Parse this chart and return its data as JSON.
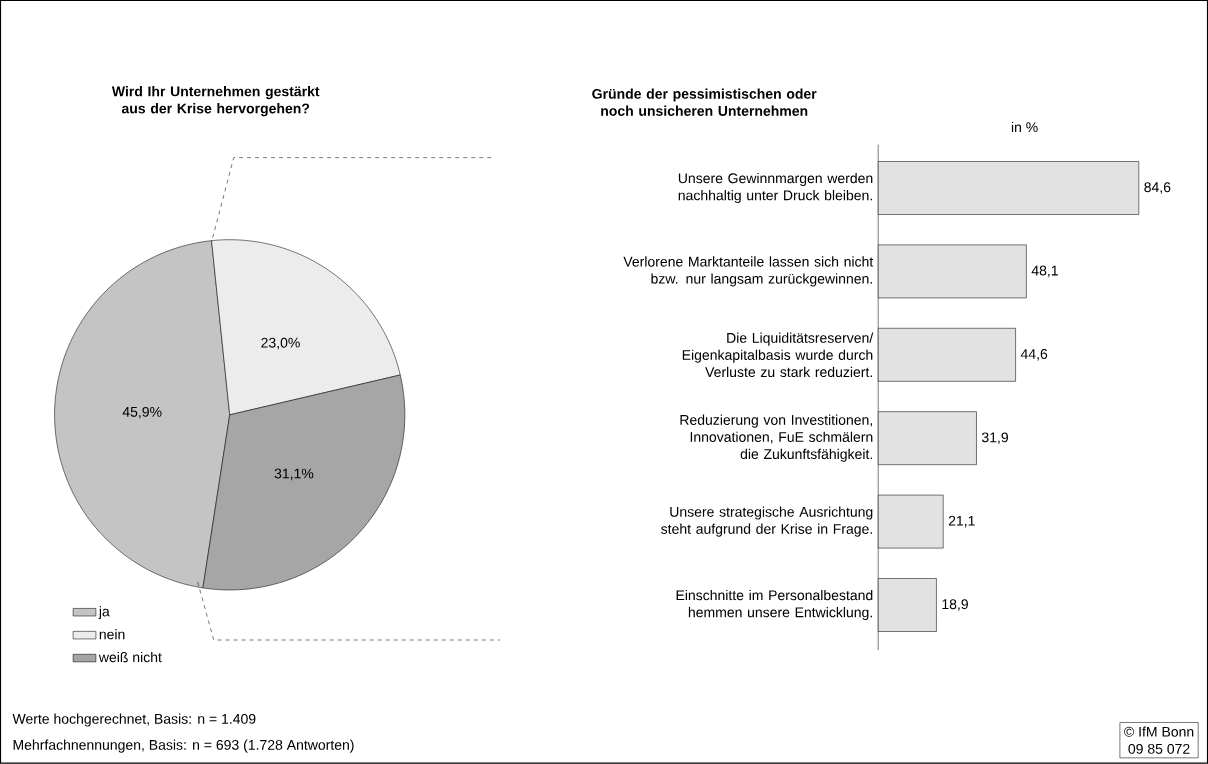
{
  "chart_data": [
    {
      "type": "pie",
      "title": "Wird Ihr Unternehmen gestärkt aus der Krise hervorgehen?",
      "categories": [
        "ja",
        "nein",
        "weiß nicht"
      ],
      "values": [
        45.9,
        23.0,
        31.1
      ],
      "value_labels": [
        "45,9%",
        "23,0%",
        "31,1%"
      ],
      "colors": [
        "#c4c4c4",
        "#ececec",
        "#a6a6a6"
      ],
      "legend": "bottom left",
      "annotations": [
        "Werte hochgerechnet, Basis: n = 1.409",
        "Mehrfachnennungen,  Basis: n = 693 (1.728 Antworten)"
      ]
    },
    {
      "type": "bar",
      "orientation": "horizontal",
      "title": "Gründe der pessimistischen oder noch unsicheren Unternehmen",
      "xlabel": "in %",
      "categories": [
        "Unsere Gewinnmargen werden nachhaltig unter Druck bleiben.",
        "Verlorene Marktanteile lassen sich nicht bzw. nur langsam zurückgewinnen.",
        "Die Liquiditätsreserven/ Eigenkapitalbasis wurde durch Verluste zu stark reduziert.",
        "Reduzierung von Investitionen, Innovationen, FuE schmälern die Zukunftsfähigkeit.",
        "Unsere strategische Ausrichtung steht aufgrund der Krise in Frage.",
        "Einschnitte im Personalbestand hemmen unsere Entwicklung."
      ],
      "values": [
        84.6,
        48.1,
        44.6,
        31.9,
        21.1,
        18.9
      ],
      "value_labels": [
        "84,6",
        "48,1",
        "44,6",
        "31,9",
        "21,1",
        "18,9"
      ],
      "color": "#e2e2e2",
      "annotations": [
        "© IfM Bonn",
        "09 85 072"
      ]
    }
  ]
}
